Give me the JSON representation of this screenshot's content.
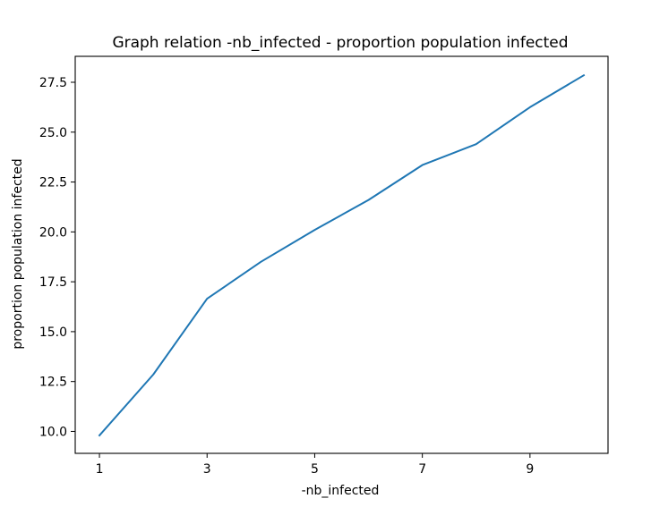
{
  "chart_data": {
    "type": "line",
    "title": "Graph relation -nb_infected - proportion population infected",
    "xlabel": "-nb_infected",
    "ylabel": "proportion population infected",
    "xlim": [
      0.55,
      10.45
    ],
    "ylim": [
      8.9,
      28.8
    ],
    "x_ticks": [
      1,
      3,
      5,
      7,
      9
    ],
    "x_tick_labels": [
      "1",
      "3",
      "5",
      "7",
      "9"
    ],
    "y_ticks": [
      10.0,
      12.5,
      15.0,
      17.5,
      20.0,
      22.5,
      25.0,
      27.5
    ],
    "y_tick_labels": [
      "10.0",
      "12.5",
      "15.0",
      "17.5",
      "20.0",
      "22.5",
      "25.0",
      "27.5"
    ],
    "grid": false,
    "series": [
      {
        "color": "#1f77b4",
        "x": [
          1,
          2,
          3,
          4,
          5,
          6,
          7,
          8,
          9,
          10
        ],
        "y": [
          9.8,
          12.85,
          16.65,
          18.5,
          20.1,
          21.6,
          23.35,
          24.4,
          26.25,
          27.85
        ]
      }
    ]
  }
}
